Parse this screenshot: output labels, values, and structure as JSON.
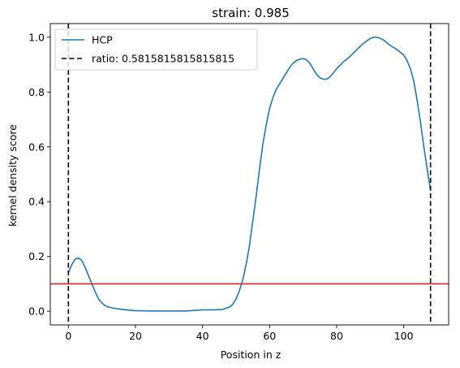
{
  "chart_data": {
    "type": "line",
    "title": "strain: 0.985",
    "xlabel": "Position in z",
    "ylabel": "kernel density score",
    "xlim": [
      -5.4,
      113.4
    ],
    "ylim": [
      -0.05,
      1.05
    ],
    "xticks": [
      0,
      20,
      40,
      60,
      80,
      100
    ],
    "yticks": [
      0.0,
      0.2,
      0.4,
      0.6,
      0.8,
      1.0
    ],
    "xtick_labels": [
      "0",
      "20",
      "40",
      "60",
      "80",
      "100"
    ],
    "ytick_labels": [
      "0.0",
      "0.2",
      "0.4",
      "0.6",
      "0.8",
      "1.0"
    ],
    "grid": false,
    "legend_position": "upper-left",
    "series": [
      {
        "name": "HCP",
        "color": "#1f77b4",
        "x": [
          0,
          1,
          2,
          3,
          4,
          5,
          6,
          7,
          8,
          9,
          10,
          11,
          12,
          14,
          16,
          18,
          20,
          25,
          30,
          35,
          40,
          44,
          46,
          48,
          49,
          50,
          51,
          52,
          53,
          54,
          55,
          56,
          57,
          58,
          59,
          60,
          61,
          62,
          63,
          64,
          65,
          66,
          67,
          68,
          69,
          70,
          71,
          72,
          73,
          74,
          75,
          76,
          77,
          78,
          79,
          80,
          82,
          84,
          86,
          88,
          90,
          91,
          92,
          93,
          94,
          95,
          96,
          98,
          100,
          101,
          102,
          103,
          104,
          105,
          106,
          107,
          108
        ],
        "y": [
          0.14,
          0.17,
          0.19,
          0.195,
          0.185,
          0.16,
          0.13,
          0.1,
          0.07,
          0.045,
          0.03,
          0.02,
          0.015,
          0.01,
          0.007,
          0.004,
          0.002,
          0.001,
          0.001,
          0.001,
          0.005,
          0.005,
          0.007,
          0.015,
          0.025,
          0.045,
          0.075,
          0.115,
          0.17,
          0.24,
          0.33,
          0.42,
          0.52,
          0.61,
          0.68,
          0.74,
          0.78,
          0.81,
          0.83,
          0.85,
          0.87,
          0.89,
          0.905,
          0.915,
          0.92,
          0.922,
          0.918,
          0.905,
          0.885,
          0.865,
          0.852,
          0.847,
          0.847,
          0.855,
          0.87,
          0.885,
          0.91,
          0.93,
          0.955,
          0.978,
          0.995,
          1.0,
          1.0,
          0.996,
          0.99,
          0.98,
          0.97,
          0.955,
          0.935,
          0.915,
          0.885,
          0.84,
          0.77,
          0.69,
          0.6,
          0.52,
          0.44
        ]
      }
    ],
    "hlines": [
      {
        "y": 0.1,
        "color": "#d62728"
      }
    ],
    "vlines": [
      {
        "x": 0,
        "color": "#000000",
        "style": "dashed"
      },
      {
        "x": 108,
        "color": "#000000",
        "style": "dashed"
      }
    ],
    "legend": [
      {
        "label": "HCP",
        "color": "#1f77b4",
        "style": "solid"
      },
      {
        "label": "ratio: 0.5815815815815815",
        "color": "#000000",
        "style": "dashed"
      }
    ]
  }
}
